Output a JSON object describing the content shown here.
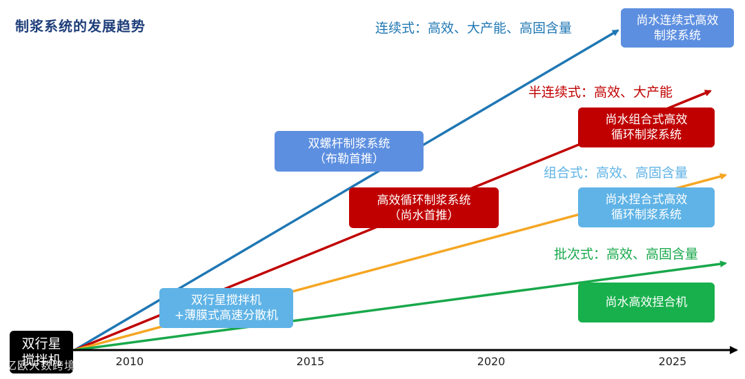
{
  "title": "制浆系统的发展趋势",
  "start_box": {
    "line1": "双行星",
    "line2": "搅拌机"
  },
  "watermark": "亿欧大数跨境",
  "axis": {
    "ticks": [
      "2010",
      "2015",
      "2020",
      "2025"
    ]
  },
  "trend_labels": {
    "continuous": "连续式：高效、大产能、高固含量",
    "semi_continuous": "半连续式：高效、大产能",
    "combined": "组合式：高效、高固含量",
    "batch": "批次式：高效、高固含量"
  },
  "boxes": {
    "planetary": {
      "line1": "双行星搅拌机",
      "line2": "+薄膜式高速分散机"
    },
    "twin_screw": {
      "line1": "双螺杆制浆系统",
      "line2": "（布勒首推）"
    },
    "efficient_cycle": {
      "line1": "高效循环制浆系统",
      "line2": "（尚水首推）"
    },
    "shangshui_continuous": {
      "line1": "尚水连续式高效",
      "line2": "制浆系统"
    },
    "shangshui_combined_cycle": {
      "line1": "尚水组合式高效",
      "line2": "循环制浆系统"
    },
    "shangshui_kneading_cycle": {
      "line1": "尚水捏合式高效",
      "line2": "循环制浆系统"
    },
    "shangshui_kneader": {
      "line1": "尚水高效捏合机"
    }
  },
  "colors": {
    "continuous": "#1f77b4",
    "semi_continuous": "#c00000",
    "combined": "#f5a623",
    "batch": "#18a84a",
    "light_blue_box": "#5fb3e6",
    "mid_blue_box": "#5d8fe0",
    "red_box": "#c00000",
    "green_box": "#18b04c",
    "title": "#1f3f7a"
  }
}
